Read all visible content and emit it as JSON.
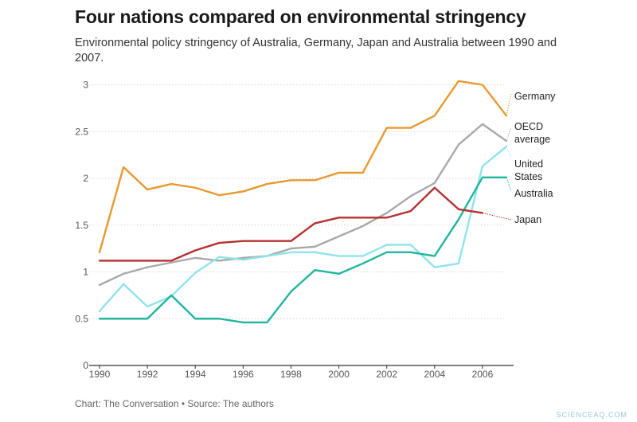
{
  "header": {
    "title": "Four nations compared on environmental stringency",
    "subtitle": "Environmental policy stringency of Australia, Germany, Japan and Australia between 1990 and 2007."
  },
  "footer": {
    "source": "Chart: The Conversation • Source: The authors",
    "watermark": "SCIENCEAQ.COM"
  },
  "chart_data": {
    "type": "line",
    "title": "Four nations compared on environmental stringency",
    "xlabel": "",
    "ylabel": "",
    "xlim": [
      1990,
      2007
    ],
    "ylim": [
      0,
      3
    ],
    "x_ticks": [
      "1990",
      "1992",
      "1994",
      "1996",
      "1998",
      "2000",
      "2002",
      "2004",
      "2006"
    ],
    "y_ticks": [
      "0",
      "0.5",
      "1",
      "1.5",
      "2",
      "2.5",
      "3"
    ],
    "grid": "horizontal dotted",
    "legend": "direct labels at right end of lines",
    "x": [
      1990,
      1991,
      1992,
      1993,
      1994,
      1995,
      1996,
      1997,
      1998,
      1999,
      2000,
      2001,
      2002,
      2003,
      2004,
      2005,
      2006,
      2007
    ],
    "series": [
      {
        "name": "Germany",
        "color": "#e8992f",
        "values": [
          1.21,
          2.12,
          1.88,
          1.94,
          1.9,
          1.82,
          1.86,
          1.94,
          1.98,
          1.98,
          2.06,
          2.06,
          2.54,
          2.54,
          2.67,
          3.04,
          3.0,
          2.67
        ]
      },
      {
        "name": "OECD average",
        "color": "#a9a9a9",
        "values": [
          0.86,
          0.98,
          1.05,
          1.1,
          1.15,
          1.12,
          1.15,
          1.17,
          1.25,
          1.27,
          1.38,
          1.49,
          1.63,
          1.81,
          1.95,
          2.36,
          2.58,
          2.4
        ]
      },
      {
        "name": "United States",
        "color": "#8fe3ec",
        "values": [
          0.58,
          0.87,
          0.63,
          0.74,
          0.99,
          1.16,
          1.13,
          1.17,
          1.21,
          1.21,
          1.17,
          1.17,
          1.29,
          1.29,
          1.05,
          1.09,
          2.13,
          2.34
        ]
      },
      {
        "name": "Australia",
        "color": "#1fb59e",
        "values": [
          0.5,
          0.5,
          0.5,
          0.75,
          0.5,
          0.5,
          0.46,
          0.46,
          0.79,
          1.02,
          0.98,
          1.09,
          1.21,
          1.21,
          1.17,
          1.56,
          2.01,
          2.01
        ]
      },
      {
        "name": "Japan",
        "color": "#b5302f",
        "values": [
          1.12,
          1.12,
          1.12,
          1.12,
          1.23,
          1.31,
          1.33,
          1.33,
          1.33,
          1.52,
          1.58,
          1.58,
          1.58,
          1.65,
          1.9,
          1.67,
          1.63,
          null
        ]
      }
    ],
    "labels": [
      {
        "series": "Germany",
        "lines": [
          "Germany"
        ]
      },
      {
        "series": "OECD average",
        "lines": [
          "OECD",
          "average"
        ]
      },
      {
        "series": "United States",
        "lines": [
          "United",
          "States"
        ]
      },
      {
        "series": "Australia",
        "lines": [
          "Australia"
        ]
      },
      {
        "series": "Japan",
        "lines": [
          "Japan"
        ]
      }
    ]
  }
}
